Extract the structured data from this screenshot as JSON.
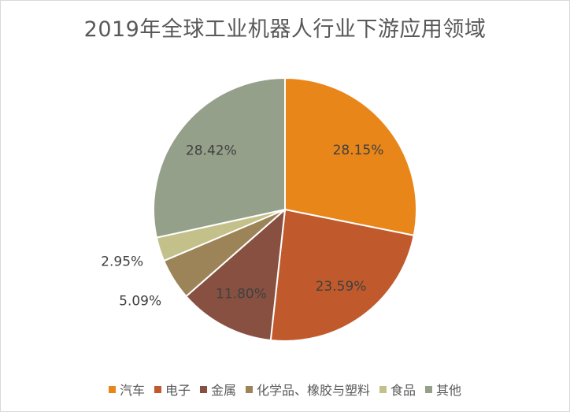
{
  "chart_data": {
    "type": "pie",
    "title": "2019年全球工业机器人行业下游应用领域",
    "slices": [
      {
        "label": "汽车",
        "value": 28.15,
        "display": "28.15%",
        "color": "#e8861a"
      },
      {
        "label": "电子",
        "value": 23.59,
        "display": "23.59%",
        "color": "#c05a2c"
      },
      {
        "label": "金属",
        "value": 11.8,
        "display": "11.80%",
        "color": "#875041"
      },
      {
        "label": "化学品、橡胶与塑料",
        "value": 5.09,
        "display": "5.09%",
        "color": "#9c8458"
      },
      {
        "label": "食品",
        "value": 2.95,
        "display": "2.95%",
        "color": "#c4c08a"
      },
      {
        "label": "其他",
        "value": 28.42,
        "display": "28.42%",
        "color": "#95a08a"
      }
    ],
    "legend_position": "bottom",
    "start_angle": "12 o'clock",
    "direction": "clockwise"
  }
}
